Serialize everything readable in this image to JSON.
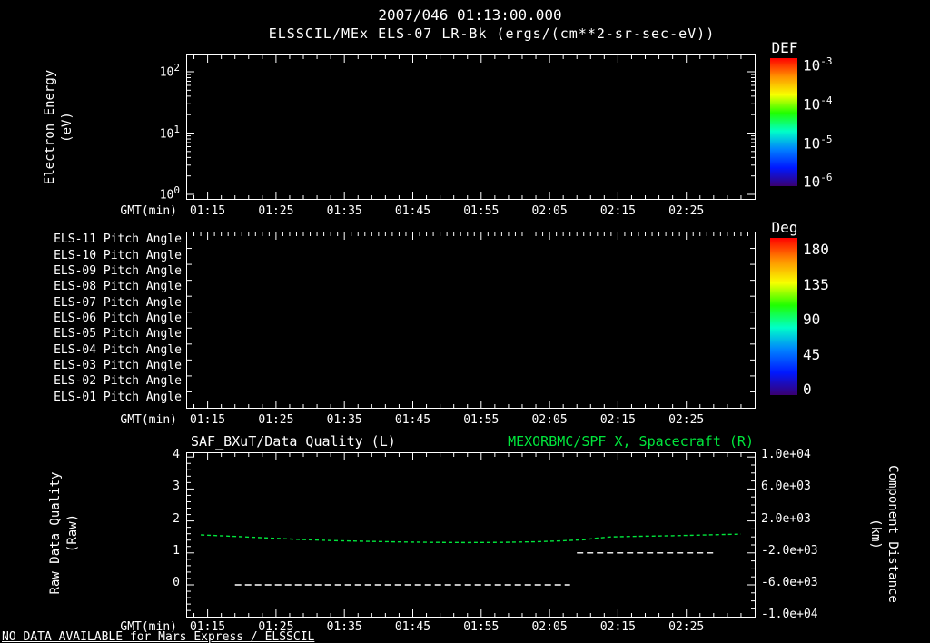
{
  "colors": {
    "background": "#000000",
    "foreground": "#ffffff",
    "accent_green": "#00e63c",
    "colorbar_gradient": [
      "#ff0000",
      "#ff9000",
      "#f8ff00",
      "#20ff00",
      "#00ffc8",
      "#0080ff",
      "#0018ff",
      "#3a0070"
    ]
  },
  "header": {
    "timestamp": "2007/046 01:13:00.000",
    "title": "ELSSCIL/MEx ELS-07 LR-Bk (ergs/(cm**2-sr-sec-eV))"
  },
  "footer": {
    "notice": "NO DATA AVAILABLE for Mars Express / ELSSCIL"
  },
  "chart_data": [
    {
      "type": "heatmap",
      "panel": "electron-energy-spectrogram",
      "ylabel_lines": [
        "Electron Energy",
        "(eV)"
      ],
      "y_scale": "log",
      "y_ticks": [
        {
          "b": "10",
          "e": "2"
        },
        {
          "b": "10",
          "e": "1"
        },
        {
          "b": "10",
          "e": "0"
        }
      ],
      "y_range_ev": [
        1,
        100
      ],
      "xlabel": "GMT(min)",
      "x_ticks": [
        "01:15",
        "01:25",
        "01:35",
        "01:45",
        "01:55",
        "02:05",
        "02:15",
        "02:25"
      ],
      "colorbar": {
        "title": "DEF",
        "tick_labels": [
          {
            "b": "10",
            "e": "-3"
          },
          {
            "b": "10",
            "e": "-4"
          },
          {
            "b": "10",
            "e": "-5"
          },
          {
            "b": "10",
            "e": "-6"
          }
        ]
      },
      "values": []
    },
    {
      "type": "heatmap",
      "panel": "pitch-angles",
      "row_labels": [
        "ELS-11 Pitch Angle",
        "ELS-10 Pitch Angle",
        "ELS-09 Pitch Angle",
        "ELS-08 Pitch Angle",
        "ELS-07 Pitch Angle",
        "ELS-06 Pitch Angle",
        "ELS-05 Pitch Angle",
        "ELS-04 Pitch Angle",
        "ELS-03 Pitch Angle",
        "ELS-02 Pitch Angle",
        "ELS-01 Pitch Angle"
      ],
      "xlabel": "GMT(min)",
      "x_ticks": [
        "01:15",
        "01:25",
        "01:35",
        "01:45",
        "01:55",
        "02:05",
        "02:15",
        "02:25"
      ],
      "colorbar": {
        "title": "Deg",
        "tick_labels": [
          "180",
          "135",
          "90",
          "45",
          "0"
        ]
      },
      "values": []
    },
    {
      "type": "line",
      "panel": "data-quality-and-spacecraft-x",
      "title_left": "SAF_BXuT/Data Quality (L)",
      "title_right": "MEXORBMC/SPF X, Spacecraft (R)",
      "xlabel": "GMT(min)",
      "x_ticks": [
        "01:15",
        "01:25",
        "01:35",
        "01:45",
        "01:55",
        "02:05",
        "02:15",
        "02:25"
      ],
      "left_axis": {
        "label_lines": [
          "Raw Data Quality",
          "(Raw)"
        ],
        "ticks": [
          "4",
          "3",
          "2",
          "1",
          "0"
        ],
        "range": [
          0,
          4
        ]
      },
      "right_axis": {
        "label_lines": [
          "Component Distance",
          "(km)"
        ],
        "ticks": [
          "1.0e+04",
          "6.0e+03",
          "2.0e+03",
          "-2.0e+03",
          "-6.0e+03",
          "-1.0e+04"
        ],
        "range": [
          -10000,
          10000
        ]
      },
      "series": [
        {
          "name": "SAF_BXuT/Data Quality (L)",
          "axis": "left",
          "color": "#ffffff",
          "line_style": "dashed",
          "segments": [
            {
              "t_minutes": [
                79,
                128
              ],
              "value": 0
            },
            {
              "t_minutes": [
                129,
                149
              ],
              "value": 1
            }
          ]
        },
        {
          "name": "MEXORBMC/SPF X, Spacecraft (R)",
          "axis": "right",
          "color": "#00e63c",
          "line_style": "dashed",
          "t_minutes": [
            74,
            78,
            83,
            88,
            93,
            98,
            103,
            108,
            113,
            118,
            123,
            127,
            130,
            132,
            134,
            138,
            143,
            148,
            153
          ],
          "values_km": [
            250,
            100,
            -100,
            -300,
            -450,
            -550,
            -620,
            -680,
            -700,
            -680,
            -600,
            -480,
            -350,
            -150,
            0,
            80,
            150,
            250,
            350
          ]
        }
      ]
    }
  ]
}
